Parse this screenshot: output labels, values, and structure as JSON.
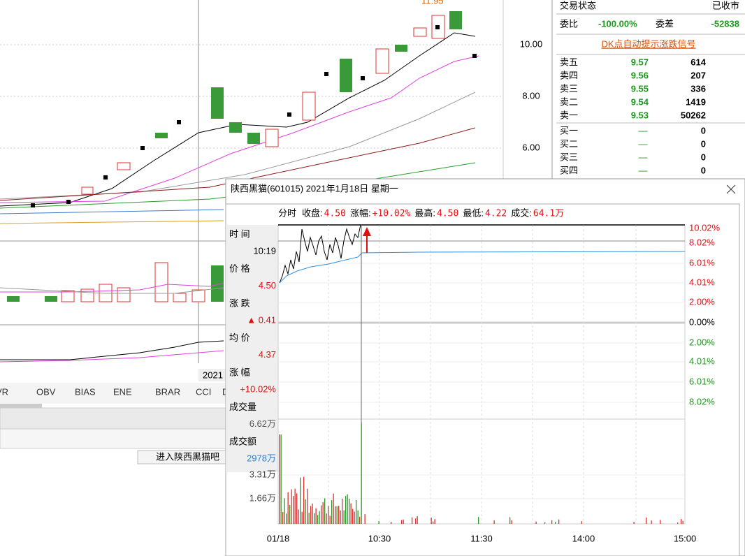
{
  "kline": {
    "top_label": "11.95",
    "price_labels": [
      "10.00",
      "8.00",
      "6.00"
    ],
    "date_label": "2021",
    "tabs": [
      "VR",
      "OBV",
      "BIAS",
      "ENE",
      "BRAR",
      "CCI",
      "D"
    ],
    "forum_button": "进入陕西黑猫吧"
  },
  "quote_panel": {
    "status_label": "交易状态",
    "status_value": "已收市",
    "ratio_label": "委比",
    "ratio_value": "-100.00%",
    "diff_label": "委差",
    "diff_value": "-52838",
    "signal_link": "DK点自动提示涨跌信号",
    "sell": [
      {
        "label": "卖五",
        "price": "9.57",
        "volume": "614"
      },
      {
        "label": "卖四",
        "price": "9.56",
        "volume": "207"
      },
      {
        "label": "卖三",
        "price": "9.55",
        "volume": "336"
      },
      {
        "label": "卖二",
        "price": "9.54",
        "volume": "1419"
      },
      {
        "label": "卖一",
        "price": "9.53",
        "volume": "50262"
      }
    ],
    "buy": [
      {
        "label": "买一",
        "price": "—",
        "volume": "0"
      },
      {
        "label": "买二",
        "price": "—",
        "volume": "0"
      },
      {
        "label": "买三",
        "price": "—",
        "volume": "0"
      },
      {
        "label": "买四",
        "price": "—",
        "volume": "0"
      }
    ]
  },
  "popup": {
    "title": "陕西黑猫(601015) 2021年1月18日 星期一",
    "info_bar": [
      {
        "label": "分时",
        "value": ""
      },
      {
        "label": "收盘:",
        "value": "4.50"
      },
      {
        "label": "涨幅:",
        "value": "+10.02%"
      },
      {
        "label": "最高:",
        "value": "4.50"
      },
      {
        "label": "最低:",
        "value": "4.22"
      },
      {
        "label": "成交:",
        "value": "64.1万"
      }
    ],
    "side": [
      {
        "label": "时 间",
        "value": "10:19"
      },
      {
        "label": "价 格",
        "value": "4.50"
      },
      {
        "label": "涨 跌",
        "value": "▲ 0.41"
      },
      {
        "label": "均 价",
        "value": "4.37"
      },
      {
        "label": "涨 幅",
        "value": "+10.02%"
      },
      {
        "label": "成交量",
        "value": "6.62万"
      },
      {
        "label": "成交额",
        "value": "2978万"
      }
    ],
    "pct_labels": [
      "10.02%",
      "8.02%",
      "6.01%",
      "4.01%",
      "2.00%",
      "0.00%",
      "2.00%",
      "4.01%",
      "6.01%",
      "8.02%"
    ],
    "volume_labels": [
      "3.31万",
      "1.66万"
    ],
    "time_labels": [
      "01/18",
      "10:30",
      "11:30",
      "14:00",
      "15:00"
    ]
  }
}
